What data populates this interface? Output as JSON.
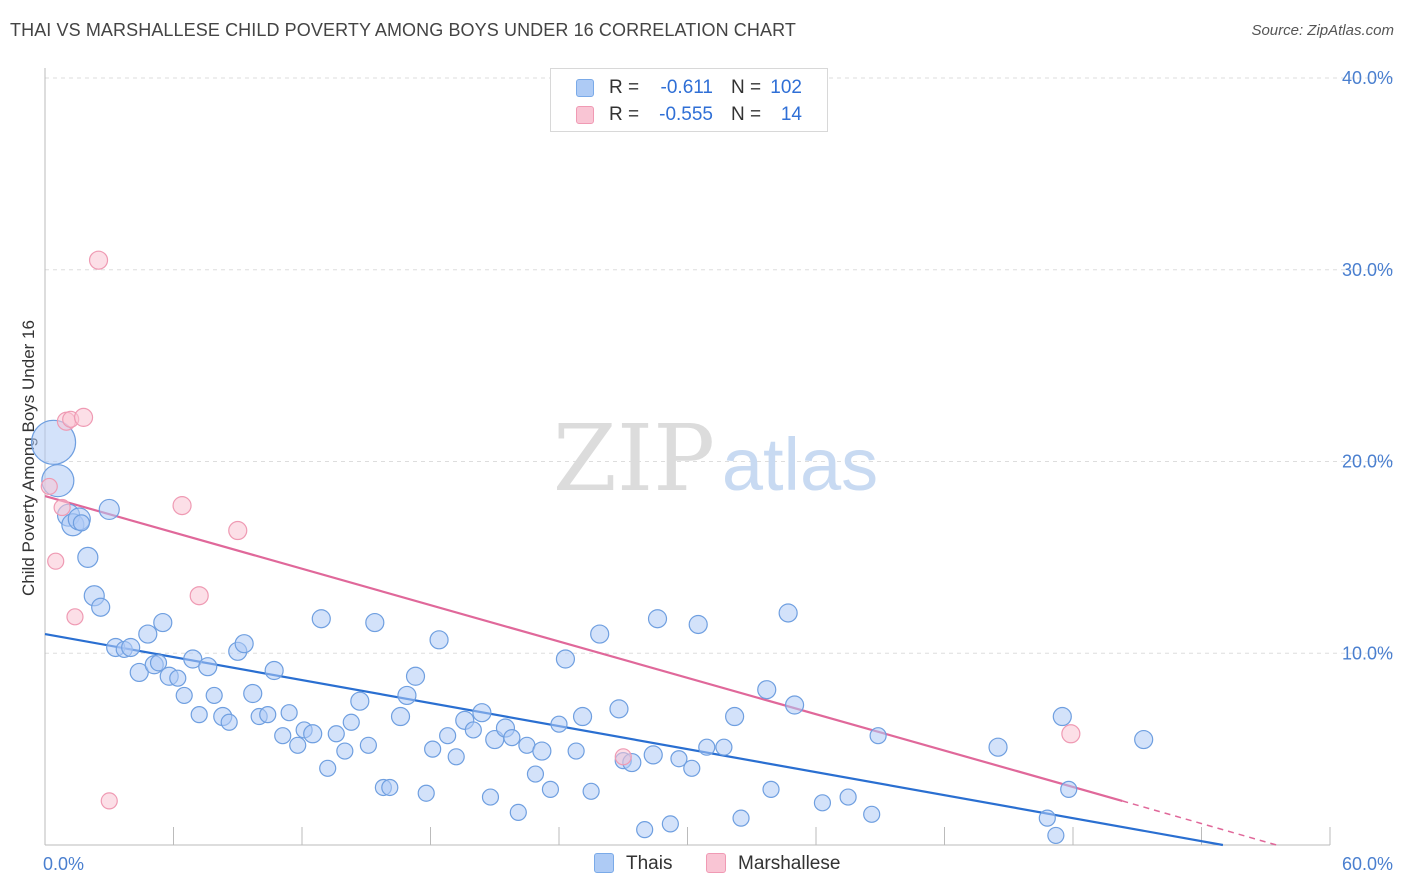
{
  "title": "THAI VS MARSHALLESE CHILD POVERTY AMONG BOYS UNDER 16 CORRELATION CHART",
  "source": "Source: ZipAtlas.com",
  "watermark": {
    "zip": "ZIP",
    "atlas": "atlas"
  },
  "legend": {
    "rows": [
      {
        "r_label": "R =",
        "r_value": "-0.611",
        "n_label": "N =",
        "n_value": "102",
        "color": "#aecbf5",
        "border": "#7aaae8"
      },
      {
        "r_label": "R =",
        "r_value": "-0.555",
        "n_label": "N =",
        "n_value": "14",
        "color": "#f9c5d4",
        "border": "#f09ab4"
      }
    ]
  },
  "bottom_legend": [
    {
      "label": "Thais",
      "color": "#aecbf5",
      "border": "#7aaae8"
    },
    {
      "label": "Marshallese",
      "color": "#f9c5d4",
      "border": "#f09ab4"
    }
  ],
  "chart_data": {
    "type": "scatter",
    "title": "THAI VS MARSHALLESE CHILD POVERTY AMONG BOYS UNDER 16 CORRELATION CHART",
    "xlabel": "",
    "ylabel": "Child Poverty Among Boys Under 16",
    "xlim": [
      0,
      60
    ],
    "ylim": [
      0,
      40
    ],
    "x_tick_labels": [
      "0.0%",
      "60.0%"
    ],
    "y_ticks": [
      10,
      20,
      30,
      40
    ],
    "y_tick_labels": [
      "10.0%",
      "20.0%",
      "30.0%",
      "40.0%"
    ],
    "grid": true,
    "legend_position": "top-center",
    "series": [
      {
        "name": "Thais",
        "color": "#aecbf5",
        "stroke": "#6f9fe0",
        "trend_color": "#2a6fd1",
        "trend": {
          "x0": 0,
          "y0": 11.0,
          "x1": 55,
          "y1": 0
        },
        "points": [
          [
            0.4,
            21.0,
            22
          ],
          [
            0.6,
            19.0,
            16
          ],
          [
            1.1,
            17.2,
            11
          ],
          [
            1.3,
            16.7,
            11
          ],
          [
            1.6,
            17.0,
            11
          ],
          [
            2.0,
            15.0,
            10
          ],
          [
            2.3,
            13.0,
            10
          ],
          [
            2.6,
            12.4,
            9
          ],
          [
            3.0,
            17.5,
            10
          ],
          [
            3.3,
            10.3,
            9
          ],
          [
            3.7,
            10.2,
            8
          ],
          [
            4.0,
            10.3,
            9
          ],
          [
            4.4,
            9.0,
            9
          ],
          [
            4.8,
            11.0,
            9
          ],
          [
            5.1,
            9.4,
            9
          ],
          [
            5.5,
            11.6,
            9
          ],
          [
            5.8,
            8.8,
            9
          ],
          [
            6.2,
            8.7,
            8
          ],
          [
            6.5,
            7.8,
            8
          ],
          [
            6.9,
            9.7,
            9
          ],
          [
            7.2,
            6.8,
            8
          ],
          [
            7.6,
            9.3,
            9
          ],
          [
            7.9,
            7.8,
            8
          ],
          [
            8.3,
            6.7,
            9
          ],
          [
            8.6,
            6.4,
            8
          ],
          [
            9.0,
            10.1,
            9
          ],
          [
            9.3,
            10.5,
            9
          ],
          [
            9.7,
            7.9,
            9
          ],
          [
            10.0,
            6.7,
            8
          ],
          [
            10.4,
            6.8,
            8
          ],
          [
            10.7,
            9.1,
            9
          ],
          [
            11.1,
            5.7,
            8
          ],
          [
            11.4,
            6.9,
            8
          ],
          [
            11.8,
            5.2,
            8
          ],
          [
            12.1,
            6.0,
            8
          ],
          [
            12.5,
            5.8,
            9
          ],
          [
            12.9,
            11.8,
            9
          ],
          [
            13.2,
            4.0,
            8
          ],
          [
            13.6,
            5.8,
            8
          ],
          [
            14.0,
            4.9,
            8
          ],
          [
            14.3,
            6.4,
            8
          ],
          [
            14.7,
            7.5,
            9
          ],
          [
            15.1,
            5.2,
            8
          ],
          [
            15.4,
            11.6,
            9
          ],
          [
            15.8,
            3.0,
            8
          ],
          [
            16.1,
            3.0,
            8
          ],
          [
            16.6,
            6.7,
            9
          ],
          [
            16.9,
            7.8,
            9
          ],
          [
            17.3,
            8.8,
            9
          ],
          [
            17.8,
            2.7,
            8
          ],
          [
            18.1,
            5.0,
            8
          ],
          [
            18.4,
            10.7,
            9
          ],
          [
            18.8,
            5.7,
            8
          ],
          [
            19.2,
            4.6,
            8
          ],
          [
            19.6,
            6.5,
            9
          ],
          [
            20.0,
            6.0,
            8
          ],
          [
            20.4,
            6.9,
            9
          ],
          [
            20.8,
            2.5,
            8
          ],
          [
            21.0,
            5.5,
            9
          ],
          [
            21.5,
            6.1,
            9
          ],
          [
            21.8,
            5.6,
            8
          ],
          [
            22.1,
            1.7,
            8
          ],
          [
            22.5,
            5.2,
            8
          ],
          [
            22.9,
            3.7,
            8
          ],
          [
            23.2,
            4.9,
            9
          ],
          [
            23.6,
            2.9,
            8
          ],
          [
            24.0,
            6.3,
            8
          ],
          [
            24.3,
            9.7,
            9
          ],
          [
            24.8,
            4.9,
            8
          ],
          [
            25.1,
            6.7,
            9
          ],
          [
            25.5,
            2.8,
            8
          ],
          [
            25.9,
            11.0,
            9
          ],
          [
            26.8,
            7.1,
            9
          ],
          [
            27.0,
            4.4,
            8
          ],
          [
            27.4,
            4.3,
            9
          ],
          [
            28.0,
            0.8,
            8
          ],
          [
            28.4,
            4.7,
            9
          ],
          [
            28.6,
            11.8,
            9
          ],
          [
            29.2,
            1.1,
            8
          ],
          [
            29.6,
            4.5,
            8
          ],
          [
            30.2,
            4.0,
            8
          ],
          [
            30.5,
            11.5,
            9
          ],
          [
            30.9,
            5.1,
            8
          ],
          [
            31.7,
            5.1,
            8
          ],
          [
            32.2,
            6.7,
            9
          ],
          [
            32.5,
            1.4,
            8
          ],
          [
            33.7,
            8.1,
            9
          ],
          [
            33.9,
            2.9,
            8
          ],
          [
            34.7,
            12.1,
            9
          ],
          [
            35.0,
            7.3,
            9
          ],
          [
            36.3,
            2.2,
            8
          ],
          [
            37.5,
            2.5,
            8
          ],
          [
            38.6,
            1.6,
            8
          ],
          [
            38.9,
            5.7,
            8
          ],
          [
            44.5,
            5.1,
            9
          ],
          [
            46.8,
            1.4,
            8
          ],
          [
            47.2,
            0.5,
            8
          ],
          [
            47.5,
            6.7,
            9
          ],
          [
            47.8,
            2.9,
            8
          ],
          [
            51.3,
            5.5,
            9
          ],
          [
            1.7,
            16.8,
            8
          ],
          [
            5.3,
            9.5,
            8
          ]
        ]
      },
      {
        "name": "Marshallese",
        "color": "#f9c5d4",
        "stroke": "#ef9ab3",
        "trend_color": "#e0689a",
        "trend": {
          "x0": 0,
          "y0": 18.2,
          "x1": 50.3,
          "y1": 2.3
        },
        "trend_ext": {
          "x0": 50.3,
          "y0": 2.3,
          "x1": 57.5,
          "y1": 0
        },
        "points": [
          [
            0.2,
            18.7,
            8
          ],
          [
            0.5,
            14.8,
            8
          ],
          [
            0.8,
            17.6,
            8
          ],
          [
            1.0,
            22.1,
            9
          ],
          [
            1.2,
            22.2,
            8
          ],
          [
            1.4,
            11.9,
            8
          ],
          [
            1.8,
            22.3,
            9
          ],
          [
            2.5,
            30.5,
            9
          ],
          [
            3.0,
            2.3,
            8
          ],
          [
            6.4,
            17.7,
            9
          ],
          [
            7.2,
            13.0,
            9
          ],
          [
            9.0,
            16.4,
            9
          ],
          [
            27.0,
            4.6,
            8
          ],
          [
            47.9,
            5.8,
            9
          ]
        ]
      }
    ]
  }
}
